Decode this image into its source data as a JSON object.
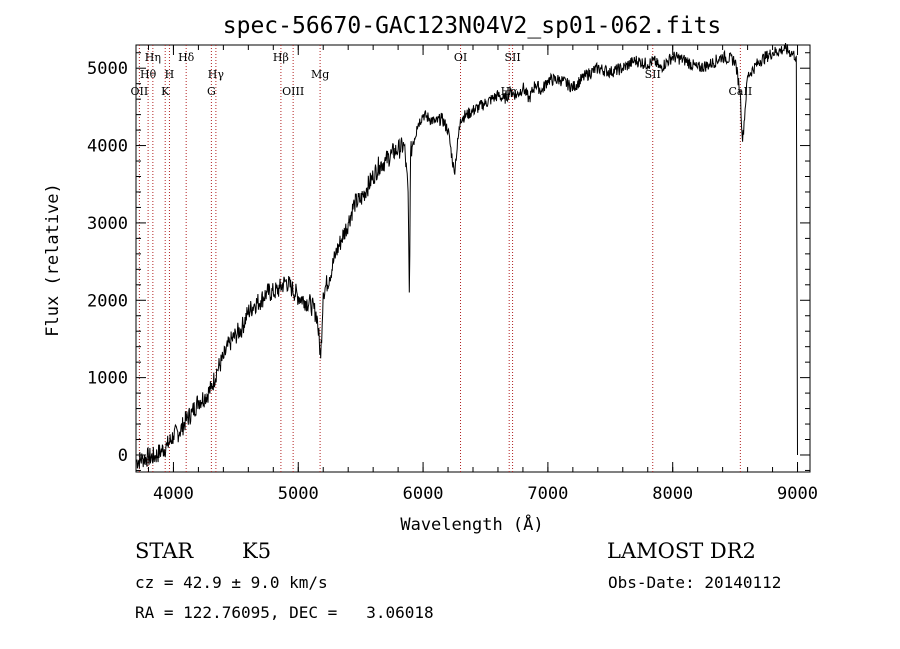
{
  "chart_data": {
    "type": "line",
    "title": "spec-56670-GAC123N04V2_sp01-062.fits",
    "xlabel": "Wavelength (Å)",
    "ylabel": "Flux (relative)",
    "xlim": [
      3700,
      9100
    ],
    "ylim": [
      -220,
      5300
    ],
    "xticks": [
      4000,
      5000,
      6000,
      7000,
      8000,
      9000
    ],
    "yticks": [
      0,
      1000,
      2000,
      3000,
      4000,
      5000
    ],
    "grid": false,
    "series": [
      {
        "x": [
          3700,
          3750,
          3800,
          3850,
          3900,
          3950,
          4000,
          4050,
          4100,
          4150,
          4200,
          4250,
          4300,
          4350,
          4400,
          4450,
          4500,
          4550,
          4600,
          4650,
          4700,
          4750,
          4800,
          4850,
          4900,
          4950,
          5000,
          5050,
          5100,
          5150,
          5180,
          5200,
          5250,
          5300,
          5350,
          5400,
          5450,
          5500,
          5550,
          5600,
          5650,
          5700,
          5750,
          5800,
          5850,
          5880,
          5890,
          5900,
          5920,
          5950,
          6000,
          6050,
          6100,
          6150,
          6200,
          6250,
          6300,
          6350,
          6400,
          6450,
          6500,
          6550,
          6600,
          6650,
          6700,
          6750,
          6800,
          6850,
          6900,
          6950,
          7000,
          7100,
          7200,
          7300,
          7400,
          7500,
          7600,
          7700,
          7800,
          7850,
          7900,
          8000,
          8100,
          8200,
          8300,
          8400,
          8500,
          8540,
          8560,
          8600,
          8700,
          8800,
          8900,
          8950,
          8990,
          9000
        ],
        "y": [
          -80,
          -50,
          -30,
          -20,
          50,
          120,
          250,
          300,
          450,
          550,
          700,
          750,
          850,
          1100,
          1250,
          1450,
          1550,
          1650,
          1850,
          1950,
          2000,
          2100,
          2100,
          2150,
          2250,
          2150,
          2050,
          2000,
          1950,
          1800,
          1250,
          2100,
          2300,
          2600,
          2800,
          3000,
          3250,
          3300,
          3450,
          3600,
          3750,
          3800,
          3900,
          3950,
          4000,
          3400,
          2100,
          3900,
          4050,
          4250,
          4400,
          4350,
          4300,
          4350,
          4200,
          3650,
          4350,
          4400,
          4450,
          4500,
          4550,
          4600,
          4650,
          4600,
          4700,
          4650,
          4750,
          4600,
          4800,
          4700,
          4850,
          4850,
          4750,
          4900,
          5000,
          4950,
          5000,
          5100,
          5050,
          5100,
          5000,
          5150,
          5100,
          5000,
          5050,
          5150,
          5100,
          4700,
          4050,
          4900,
          5100,
          5200,
          5250,
          5200,
          5150,
          0
        ]
      }
    ],
    "lines": [
      {
        "label": "Hη",
        "x": 3835,
        "row": 0
      },
      {
        "label": "Hθ",
        "x": 3797,
        "row": 1
      },
      {
        "label": "OII",
        "x": 3727,
        "row": 2
      },
      {
        "label": "H",
        "x": 3968,
        "row": 1
      },
      {
        "label": "K",
        "x": 3934,
        "row": 2
      },
      {
        "label": "Hδ",
        "x": 4102,
        "row": 0
      },
      {
        "label": "Hγ",
        "x": 4340,
        "row": 1
      },
      {
        "label": "G",
        "x": 4304,
        "row": 2
      },
      {
        "label": "Hβ",
        "x": 4861,
        "row": 0
      },
      {
        "label": "OIII",
        "x": 4959,
        "row": 2
      },
      {
        "label": "Mg",
        "x": 5175,
        "row": 1
      },
      {
        "label": "OI",
        "x": 6300,
        "row": 0
      },
      {
        "label": "SII",
        "x": 6717,
        "row": 0
      },
      {
        "label": "Hα",
        "x": 6690,
        "row": 2
      },
      {
        "label": "SII",
        "x": 7840,
        "row": 1
      },
      {
        "label": "CaII",
        "x": 8542,
        "row": 2
      }
    ]
  },
  "info": {
    "obj_class": "STAR",
    "subclass": "K5",
    "survey": "LAMOST DR2",
    "cz": "cz = 42.9 ± 9.0 km/s",
    "obs_date": "Obs-Date: 20140112",
    "coords": "RA = 122.76095, DEC =   3.06018"
  }
}
